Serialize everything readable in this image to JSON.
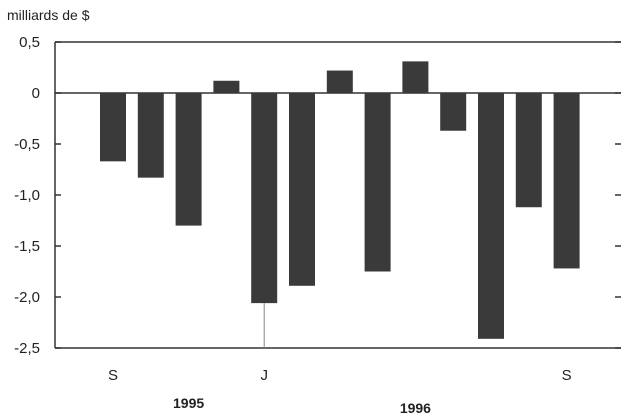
{
  "chart_data": {
    "type": "bar",
    "unit_label": "milliards de $",
    "ylim": [
      -2.5,
      0.5
    ],
    "y_ticks": [
      {
        "value": 0.5,
        "label": "0,5"
      },
      {
        "value": 0,
        "label": "0"
      },
      {
        "value": -0.5,
        "label": "-0,5"
      },
      {
        "value": -1.0,
        "label": "-1,0"
      },
      {
        "value": -1.5,
        "label": "-1,5"
      },
      {
        "value": -2.0,
        "label": "-2,0"
      },
      {
        "value": -2.5,
        "label": "-2,5"
      }
    ],
    "values": [
      -0.67,
      -0.83,
      -1.3,
      0.12,
      -2.06,
      -1.89,
      0.22,
      -1.75,
      0.31,
      -0.37,
      -2.41,
      -1.12,
      -1.72
    ],
    "x_tick_labels": [
      {
        "index": 0,
        "label": "S"
      },
      {
        "index": 4,
        "label": "J"
      },
      {
        "index": 12,
        "label": "S"
      }
    ],
    "year_labels": [
      {
        "label": "1995",
        "index": 2
      },
      {
        "label": "1996",
        "index": 8
      }
    ],
    "grid": false,
    "colors": {
      "bar": "#3a3a3a",
      "axis": "#333333"
    }
  }
}
